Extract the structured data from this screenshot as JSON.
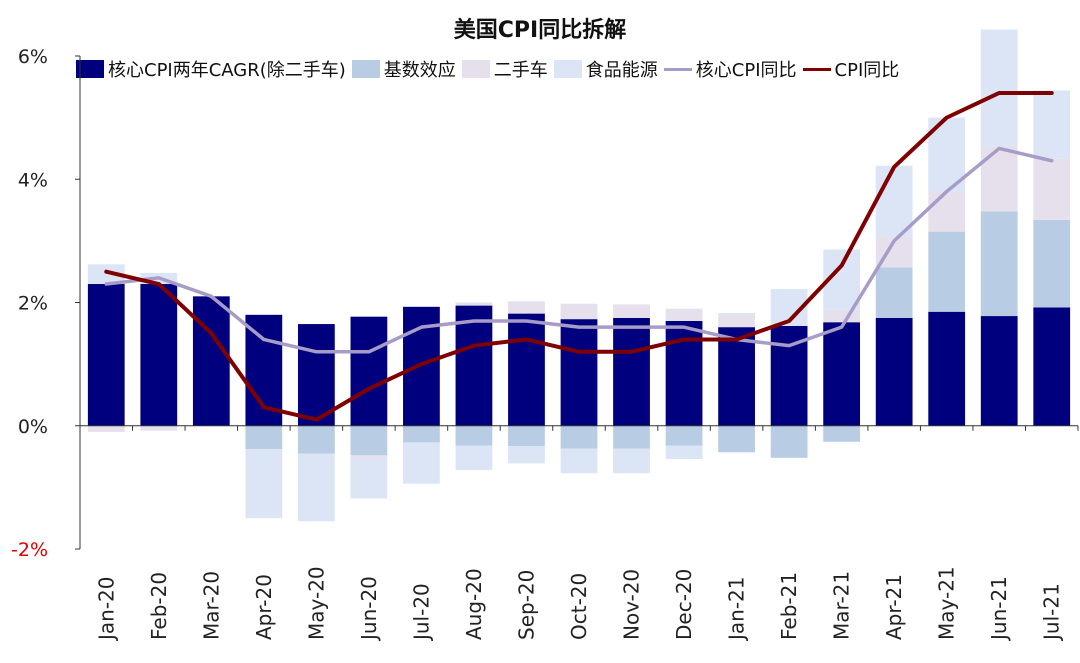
{
  "chart_data": {
    "type": "bar",
    "title": "美国CPI同比拆解",
    "categories": [
      "Jan-20",
      "Feb-20",
      "Mar-20",
      "Apr-20",
      "May-20",
      "Jun-20",
      "Jul-20",
      "Aug-20",
      "Sep-20",
      "Oct-20",
      "Nov-20",
      "Dec-20",
      "Jan-21",
      "Feb-21",
      "Mar-21",
      "Apr-21",
      "May-21",
      "Jun-21",
      "Jul-21"
    ],
    "y_ticks": [
      {
        "value": 6,
        "label": "6%"
      },
      {
        "value": 4,
        "label": "4%"
      },
      {
        "value": 2,
        "label": "2%"
      },
      {
        "value": 0,
        "label": "0%"
      },
      {
        "value": -2,
        "label": "-2%"
      }
    ],
    "ylim": [
      -2,
      6
    ],
    "stacked": true,
    "bar_series": [
      {
        "name": "核心CPI两年CAGR(除二手车)",
        "color": "#00007f",
        "values": [
          2.3,
          2.3,
          2.1,
          1.8,
          1.65,
          1.77,
          1.93,
          1.95,
          1.82,
          1.73,
          1.75,
          1.7,
          1.6,
          1.62,
          1.68,
          1.75,
          1.85,
          1.78,
          1.92
        ]
      },
      {
        "name": "基数效应",
        "color": "#b8cce4",
        "values": [
          0,
          0,
          0,
          -0.38,
          -0.45,
          -0.48,
          -0.27,
          -0.32,
          -0.33,
          -0.37,
          -0.37,
          -0.32,
          -0.43,
          -0.52,
          -0.26,
          0.82,
          1.3,
          1.7,
          1.42
        ]
      },
      {
        "name": "二手车",
        "color": "#e6e0ec",
        "values": [
          -0.1,
          -0.08,
          0,
          0,
          0,
          -0.05,
          0,
          0.05,
          0.2,
          0.25,
          0.22,
          0.2,
          0.2,
          0,
          0.2,
          0.5,
          0.65,
          1.05,
          1.0
        ]
      },
      {
        "name": "食品能源",
        "color": "#dbe5f6",
        "values": [
          0.32,
          0.18,
          0,
          -1.12,
          -1.1,
          -0.65,
          -0.67,
          -0.4,
          -0.28,
          -0.4,
          -0.4,
          -0.22,
          0.03,
          0.6,
          0.98,
          1.15,
          1.2,
          1.9,
          1.1
        ]
      }
    ],
    "line_series": [
      {
        "name": "核心CPI同比",
        "color": "#a79bc8",
        "values": [
          2.3,
          2.4,
          2.1,
          1.4,
          1.2,
          1.2,
          1.6,
          1.7,
          1.7,
          1.6,
          1.6,
          1.6,
          1.4,
          1.3,
          1.6,
          3.0,
          3.8,
          4.5,
          4.3
        ]
      },
      {
        "name": "CPI同比",
        "color": "#7f0000",
        "values": [
          2.5,
          2.3,
          1.5,
          0.3,
          0.1,
          0.6,
          1.0,
          1.3,
          1.4,
          1.2,
          1.2,
          1.4,
          1.4,
          1.7,
          2.6,
          4.2,
          5.0,
          5.4,
          5.4
        ]
      }
    ],
    "negative_tick_color": "#e00000",
    "legend_position": "top"
  }
}
